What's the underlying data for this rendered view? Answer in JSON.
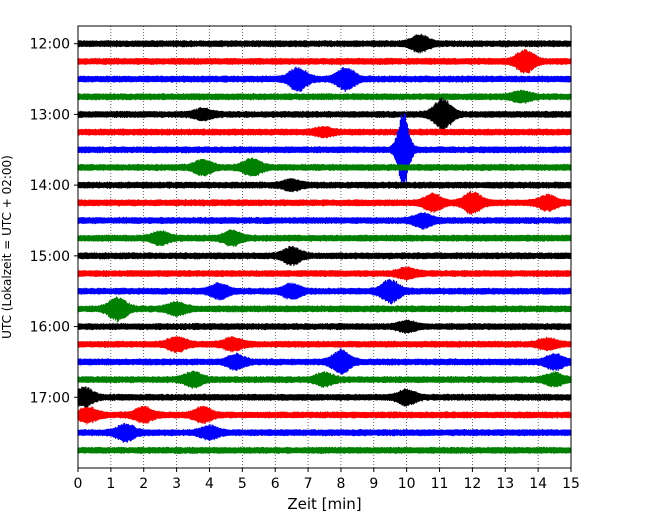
{
  "chart_data": {
    "type": "line",
    "title": "",
    "xlabel": "Zeit  [min]",
    "ylabel": "UTC (Lokalzeit = UTC + 02:00)",
    "xlim": [
      0,
      15
    ],
    "x_ticks": [
      "0",
      "1",
      "2",
      "3",
      "4",
      "5",
      "6",
      "7",
      "8",
      "9",
      "10",
      "11",
      "12",
      "13",
      "14",
      "15"
    ],
    "y_ticks": [
      {
        "label": "12:00",
        "hour": 12.0
      },
      {
        "label": "13:00",
        "hour": 13.0
      },
      {
        "label": "14:00",
        "hour": 14.0
      },
      {
        "label": "15:00",
        "hour": 15.0
      },
      {
        "label": "16:00",
        "hour": 16.0
      },
      {
        "label": "17:00",
        "hour": 17.0
      }
    ],
    "ylim_hours": [
      11.75,
      18.0
    ],
    "grid": "vertical-dotted",
    "trace_interval_min": 15,
    "colors": [
      "#000000",
      "#ff0000",
      "#0000ff",
      "#008000"
    ],
    "series": [
      {
        "start": "12:00",
        "events": [
          [
            10.4,
            7
          ]
        ]
      },
      {
        "start": "12:15",
        "events": [
          [
            13.6,
            10
          ]
        ]
      },
      {
        "start": "12:30",
        "events": [
          [
            6.7,
            10
          ],
          [
            8.15,
            10
          ]
        ]
      },
      {
        "start": "12:45",
        "events": [
          [
            13.5,
            4
          ]
        ]
      },
      {
        "start": "13:00",
        "events": [
          [
            11.1,
            14
          ],
          [
            3.8,
            4
          ]
        ]
      },
      {
        "start": "13:15",
        "events": [
          [
            7.5,
            3
          ]
        ]
      },
      {
        "start": "13:30",
        "events": [
          [
            9.9,
            38
          ]
        ]
      },
      {
        "start": "13:45",
        "events": [
          [
            3.8,
            6
          ],
          [
            5.3,
            7
          ]
        ]
      },
      {
        "start": "14:00",
        "events": [
          [
            6.5,
            4
          ]
        ]
      },
      {
        "start": "14:15",
        "events": [
          [
            10.8,
            7
          ],
          [
            12.0,
            9
          ],
          [
            14.3,
            6
          ]
        ]
      },
      {
        "start": "14:30",
        "events": [
          [
            10.5,
            6
          ]
        ]
      },
      {
        "start": "14:45",
        "events": [
          [
            2.5,
            5
          ],
          [
            4.7,
            6
          ]
        ]
      },
      {
        "start": "15:00",
        "events": [
          [
            6.5,
            7
          ]
        ]
      },
      {
        "start": "15:15",
        "events": [
          [
            10.0,
            4
          ]
        ]
      },
      {
        "start": "15:30",
        "events": [
          [
            4.3,
            6
          ],
          [
            6.5,
            6
          ],
          [
            9.5,
            10
          ]
        ]
      },
      {
        "start": "15:45",
        "events": [
          [
            1.2,
            10
          ],
          [
            3.0,
            5
          ]
        ]
      },
      {
        "start": "16:00",
        "events": [
          [
            10.0,
            4
          ]
        ]
      },
      {
        "start": "16:15",
        "events": [
          [
            3.0,
            6
          ],
          [
            4.7,
            5
          ],
          [
            14.3,
            4
          ]
        ]
      },
      {
        "start": "16:30",
        "events": [
          [
            4.8,
            6
          ],
          [
            8.0,
            10
          ],
          [
            14.5,
            6
          ]
        ]
      },
      {
        "start": "16:45",
        "events": [
          [
            3.5,
            6
          ],
          [
            7.5,
            5
          ],
          [
            14.5,
            5
          ]
        ]
      },
      {
        "start": "17:00",
        "events": [
          [
            0.2,
            8
          ],
          [
            10.0,
            6
          ]
        ]
      },
      {
        "start": "17:15",
        "events": [
          [
            0.3,
            6
          ],
          [
            2.0,
            6
          ],
          [
            3.8,
            6
          ]
        ]
      },
      {
        "start": "17:30",
        "events": [
          [
            1.45,
            7
          ],
          [
            4.0,
            5
          ]
        ]
      },
      {
        "start": "17:45",
        "events": []
      }
    ]
  }
}
